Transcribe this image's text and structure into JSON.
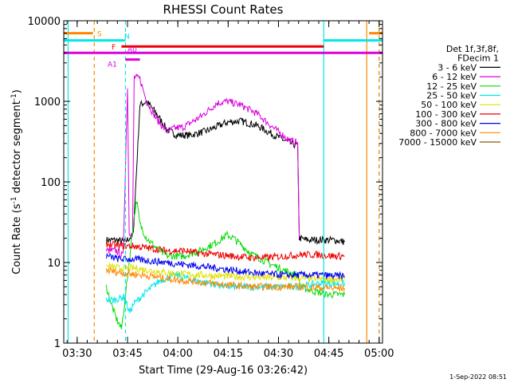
{
  "chart_data": {
    "type": "line",
    "title": "RHESSI Count Rates",
    "xlabel": "Start Time (29-Aug-16 03:26:42)",
    "ylabel_main": "Count Rate (s",
    "ylabel_exp": "-1",
    "ylabel_tail": " detector segment",
    "ylabel_exp2": "-1",
    "ylabel_close": ")",
    "y_scale": "log",
    "ylim": [
      1,
      10000
    ],
    "xlim_minutes": [
      -0.7,
      94.3
    ],
    "x_ticks": [
      {
        "label": "03:30",
        "minute": 3.3
      },
      {
        "label": "03:45",
        "minute": 18.3
      },
      {
        "label": "04:00",
        "minute": 33.3
      },
      {
        "label": "04:15",
        "minute": 48.3
      },
      {
        "label": "04:30",
        "minute": 63.3
      },
      {
        "label": "04:45",
        "minute": 78.3
      },
      {
        "label": "05:00",
        "minute": 93.3
      }
    ],
    "y_ticks": [
      {
        "label": "1",
        "value": 1
      },
      {
        "label": "10",
        "value": 10
      },
      {
        "label": "100",
        "value": 100
      },
      {
        "label": "1000",
        "value": 1000
      },
      {
        "label": "10000",
        "value": 10000
      }
    ],
    "legend": {
      "header": [
        "Det 1f,3f,8f,",
        "FDecim 1"
      ],
      "placement": "right"
    },
    "series": [
      {
        "name": "3 - 6 keV",
        "color": "#000000",
        "points": [
          [
            12,
            19
          ],
          [
            15,
            19
          ],
          [
            17.5,
            18
          ],
          [
            20,
            22
          ],
          [
            22,
            900
          ],
          [
            24,
            1000
          ],
          [
            27,
            700
          ],
          [
            30,
            450
          ],
          [
            33,
            380
          ],
          [
            37,
            380
          ],
          [
            42,
            430
          ],
          [
            48,
            550
          ],
          [
            52,
            570
          ],
          [
            57,
            500
          ],
          [
            62,
            380
          ],
          [
            67,
            300
          ],
          [
            69,
            280
          ],
          [
            69.5,
            20
          ],
          [
            72,
            19
          ],
          [
            76,
            19
          ],
          [
            80,
            19
          ],
          [
            83,
            18
          ]
        ]
      },
      {
        "name": "6 - 12 keV",
        "color": "#dd00dd",
        "points": [
          [
            12,
            14
          ],
          [
            15,
            14
          ],
          [
            17,
            12
          ],
          [
            18.3,
            1500
          ],
          [
            18.8,
            25
          ],
          [
            19.8,
            20
          ],
          [
            20.3,
            2000
          ],
          [
            22,
            1900
          ],
          [
            24,
            1000
          ],
          [
            27,
            600
          ],
          [
            30,
            420
          ],
          [
            32,
            460
          ],
          [
            35,
            480
          ],
          [
            40,
            640
          ],
          [
            45,
            950
          ],
          [
            48,
            1000
          ],
          [
            52,
            900
          ],
          [
            57,
            700
          ],
          [
            62,
            460
          ],
          [
            67,
            320
          ],
          [
            69,
            310
          ],
          [
            69.5,
            20
          ]
        ]
      },
      {
        "name": "12 - 25 keV",
        "color": "#00dd00",
        "points": [
          [
            12,
            5
          ],
          [
            13.5,
            3
          ],
          [
            15,
            2
          ],
          [
            16.5,
            1.5
          ],
          [
            18,
            5
          ],
          [
            20,
            30
          ],
          [
            21,
            60
          ],
          [
            22,
            30
          ],
          [
            24,
            20
          ],
          [
            27,
            15
          ],
          [
            30,
            12
          ],
          [
            35,
            12
          ],
          [
            40,
            14
          ],
          [
            45,
            18
          ],
          [
            48,
            22
          ],
          [
            50,
            20
          ],
          [
            55,
            13
          ],
          [
            60,
            10
          ],
          [
            65,
            8
          ],
          [
            69,
            7
          ],
          [
            70,
            5
          ],
          [
            73,
            4.5
          ],
          [
            78,
            4
          ],
          [
            83,
            4
          ]
        ]
      },
      {
        "name": "25 - 50 keV",
        "color": "#00e8e8",
        "points": [
          [
            12,
            3.5
          ],
          [
            14,
            3.4
          ],
          [
            16,
            3.6
          ],
          [
            17.5,
            3.8
          ],
          [
            18.3,
            2.8
          ],
          [
            19,
            2.4
          ],
          [
            20,
            3
          ],
          [
            23,
            4
          ],
          [
            28,
            6
          ],
          [
            33,
            7
          ],
          [
            38,
            6
          ],
          [
            43,
            5.5
          ],
          [
            48,
            5
          ],
          [
            53,
            5
          ],
          [
            58,
            5
          ],
          [
            63,
            5
          ],
          [
            69,
            5
          ],
          [
            70,
            5
          ],
          [
            75,
            5.5
          ],
          [
            83,
            5.5
          ]
        ]
      },
      {
        "name": "50 - 100 keV",
        "color": "#e0e000",
        "points": [
          [
            12,
            9
          ],
          [
            16,
            8.5
          ],
          [
            20,
            8.5
          ],
          [
            25,
            8
          ],
          [
            30,
            7.5
          ],
          [
            35,
            7.2
          ],
          [
            40,
            7
          ],
          [
            45,
            6.8
          ],
          [
            50,
            6.7
          ],
          [
            55,
            6.6
          ],
          [
            60,
            6.5
          ],
          [
            65,
            6.5
          ],
          [
            70,
            6.4
          ],
          [
            75,
            6.3
          ],
          [
            80,
            6.2
          ],
          [
            83,
            6.2
          ]
        ]
      },
      {
        "name": "100 - 300 keV",
        "color": "#ee0000",
        "points": [
          [
            12,
            17
          ],
          [
            16,
            16
          ],
          [
            20,
            16
          ],
          [
            25,
            15
          ],
          [
            30,
            14
          ],
          [
            35,
            14
          ],
          [
            40,
            13
          ],
          [
            45,
            12.5
          ],
          [
            50,
            12
          ],
          [
            55,
            11.5
          ],
          [
            60,
            11.5
          ],
          [
            65,
            12
          ],
          [
            70,
            12.5
          ],
          [
            75,
            12.5
          ],
          [
            80,
            12
          ],
          [
            83,
            12
          ]
        ]
      },
      {
        "name": "300 - 800 keV",
        "color": "#0000ee",
        "points": [
          [
            12,
            12
          ],
          [
            16,
            11
          ],
          [
            20,
            11
          ],
          [
            25,
            10.5
          ],
          [
            30,
            10
          ],
          [
            35,
            9.5
          ],
          [
            40,
            9
          ],
          [
            45,
            8.5
          ],
          [
            50,
            8
          ],
          [
            55,
            7.5
          ],
          [
            60,
            7.2
          ],
          [
            65,
            7
          ],
          [
            70,
            7
          ],
          [
            75,
            7
          ],
          [
            80,
            6.8
          ],
          [
            83,
            6.8
          ]
        ]
      },
      {
        "name": "800 - 7000 keV",
        "color": "#ff8800",
        "points": [
          [
            12,
            8
          ],
          [
            16,
            7.5
          ],
          [
            20,
            7.2
          ],
          [
            25,
            6.8
          ],
          [
            30,
            6.3
          ],
          [
            35,
            6
          ],
          [
            40,
            5.7
          ],
          [
            45,
            5.4
          ],
          [
            50,
            5.2
          ],
          [
            55,
            5
          ],
          [
            60,
            5
          ],
          [
            65,
            5
          ],
          [
            70,
            5
          ],
          [
            75,
            4.9
          ],
          [
            80,
            4.8
          ],
          [
            83,
            4.8
          ]
        ]
      },
      {
        "name": "7000 - 15000 keV",
        "color": "#8b5a00",
        "points": []
      }
    ],
    "attenuator_states": [
      {
        "label": "S",
        "color": "#ff8800",
        "start": -0.7,
        "end": 8,
        "value": 7000
      },
      {
        "label": "S",
        "color": "#ff8800",
        "start": 90.3,
        "end": 94.3,
        "value": 7000
      },
      {
        "label": "N",
        "color": "#00e8e8",
        "start": -0.7,
        "end": 17.7,
        "value": 5700
      },
      {
        "label": "N",
        "color": "#00e8e8",
        "start": 76.8,
        "end": 94.3,
        "value": 5700
      },
      {
        "label": "F",
        "color": "#ee0000",
        "start": 16.5,
        "end": 76.8,
        "value": 4800
      },
      {
        "label": "A0",
        "color": "#dd00dd",
        "start": -0.7,
        "end": 94.3,
        "value": 4000
      },
      {
        "label": "A1",
        "color": "#dd00dd",
        "start": 17.7,
        "end": 22,
        "value": 3300
      }
    ],
    "vertical_markers": [
      {
        "minute": 0.6,
        "color": "#00e8e8",
        "style": "solid"
      },
      {
        "minute": 8.4,
        "color": "#ff8800",
        "style": "dashed"
      },
      {
        "minute": 17.7,
        "color": "#00e8e8",
        "style": "dashed"
      },
      {
        "minute": 76.8,
        "color": "#00e8e8",
        "style": "solid"
      },
      {
        "minute": 89.6,
        "color": "#ff8800",
        "style": "solid"
      },
      {
        "minute": 93.3,
        "color": "#00e8e8",
        "style": "dashed"
      },
      {
        "minute": 93.3,
        "color": "#ff8800",
        "style": "dashed"
      }
    ]
  },
  "footer": {
    "timestamp": "1-Sep-2022 08:51"
  }
}
